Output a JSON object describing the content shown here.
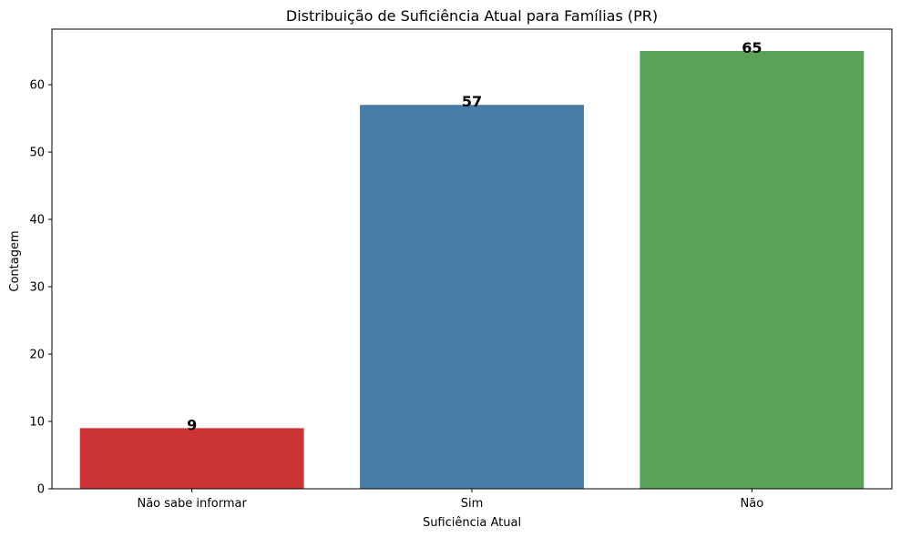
{
  "chart_data": {
    "type": "bar",
    "title": "Distribuição de Suficiência Atual para Famílias (PR)",
    "xlabel": "Suficiência Atual",
    "ylabel": "Contagem",
    "categories": [
      "Não sabe informar",
      "Sim",
      "Não"
    ],
    "values": [
      9,
      57,
      65
    ],
    "data_labels": [
      "9",
      "57",
      "65"
    ],
    "colors": [
      "#cc3434",
      "#477ba8",
      "#5aa256"
    ],
    "ylim": [
      0,
      68.25
    ],
    "yticks": [
      0,
      10,
      20,
      30,
      40,
      50,
      60
    ],
    "grid": false
  }
}
